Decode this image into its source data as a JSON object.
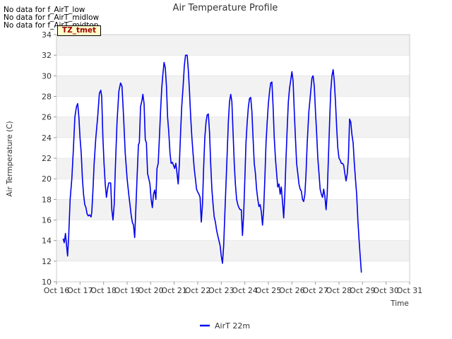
{
  "no_data_notes": [
    "No data for f_AirT_low",
    "No data for f_AirT_midlow",
    "No data for f_AirT_midtop"
  ],
  "tz_label": "TZ_tmet",
  "colors": {
    "series": "#0000ee",
    "band": "#f2f2f2",
    "grid": "#dddddd"
  },
  "chart_data": {
    "type": "line",
    "title": "Air Temperature Profile",
    "xlabel": "Time",
    "ylabel": "Air Termperature (C)",
    "xlim": [
      16,
      31
    ],
    "ylim": [
      10,
      34
    ],
    "y_ticks": [
      10,
      12,
      14,
      16,
      18,
      20,
      22,
      24,
      26,
      28,
      30,
      32,
      34
    ],
    "x_ticks": [
      {
        "v": 16,
        "label": "Oct 16"
      },
      {
        "v": 17,
        "label": "Oct 17"
      },
      {
        "v": 18,
        "label": "Oct 18"
      },
      {
        "v": 19,
        "label": "Oct 19"
      },
      {
        "v": 20,
        "label": "Oct 20"
      },
      {
        "v": 21,
        "label": "Oct 21"
      },
      {
        "v": 22,
        "label": "Oct 22"
      },
      {
        "v": 23,
        "label": "Oct 23"
      },
      {
        "v": 24,
        "label": "Oct 24"
      },
      {
        "v": 25,
        "label": "Oct 25"
      },
      {
        "v": 26,
        "label": "Oct 26"
      },
      {
        "v": 27,
        "label": "Oct 27"
      },
      {
        "v": 28,
        "label": "Oct 28"
      },
      {
        "v": 29,
        "label": "Oct 29"
      },
      {
        "v": 30,
        "label": "Oct 30"
      },
      {
        "v": 31,
        "label": "Oct 31"
      }
    ],
    "legend": "bottom-center",
    "series": [
      {
        "name": "AirT 22m",
        "points": [
          [
            16.28,
            14.2
          ],
          [
            16.33,
            13.8
          ],
          [
            16.38,
            14.7
          ],
          [
            16.43,
            13.5
          ],
          [
            16.47,
            12.5
          ],
          [
            16.52,
            14.5
          ],
          [
            16.58,
            18.0
          ],
          [
            16.65,
            20.0
          ],
          [
            16.72,
            23.0
          ],
          [
            16.78,
            26.0
          ],
          [
            16.85,
            27.0
          ],
          [
            16.9,
            27.3
          ],
          [
            16.95,
            26.0
          ],
          [
            17.0,
            24.0
          ],
          [
            17.05,
            22.5
          ],
          [
            17.1,
            20.0
          ],
          [
            17.15,
            18.5
          ],
          [
            17.2,
            17.5
          ],
          [
            17.25,
            17.2
          ],
          [
            17.3,
            16.6
          ],
          [
            17.35,
            16.4
          ],
          [
            17.4,
            16.5
          ],
          [
            17.47,
            16.3
          ],
          [
            17.5,
            16.8
          ],
          [
            17.55,
            19.0
          ],
          [
            17.6,
            21.5
          ],
          [
            17.67,
            24.0
          ],
          [
            17.75,
            26.0
          ],
          [
            17.82,
            28.3
          ],
          [
            17.88,
            28.6
          ],
          [
            17.92,
            28.0
          ],
          [
            17.97,
            24.0
          ],
          [
            18.02,
            21.5
          ],
          [
            18.07,
            19.5
          ],
          [
            18.12,
            18.2
          ],
          [
            18.17,
            19.0
          ],
          [
            18.22,
            19.6
          ],
          [
            18.3,
            19.6
          ],
          [
            18.35,
            17.0
          ],
          [
            18.4,
            16.0
          ],
          [
            18.45,
            17.5
          ],
          [
            18.5,
            21.0
          ],
          [
            18.57,
            25.5
          ],
          [
            18.65,
            28.5
          ],
          [
            18.72,
            29.3
          ],
          [
            18.78,
            29.0
          ],
          [
            18.85,
            26.0
          ],
          [
            18.92,
            22.5
          ],
          [
            19.0,
            20.0
          ],
          [
            19.07,
            18.5
          ],
          [
            19.12,
            17.5
          ],
          [
            19.17,
            16.5
          ],
          [
            19.22,
            15.8
          ],
          [
            19.27,
            15.5
          ],
          [
            19.32,
            14.3
          ],
          [
            19.37,
            17.0
          ],
          [
            19.42,
            20.0
          ],
          [
            19.48,
            23.3
          ],
          [
            19.52,
            23.5
          ],
          [
            19.57,
            27.0
          ],
          [
            19.63,
            27.6
          ],
          [
            19.67,
            28.2
          ],
          [
            19.72,
            27.3
          ],
          [
            19.77,
            23.8
          ],
          [
            19.82,
            23.5
          ],
          [
            19.87,
            20.5
          ],
          [
            19.92,
            20.0
          ],
          [
            19.97,
            19.5
          ],
          [
            20.02,
            18.0
          ],
          [
            20.07,
            17.2
          ],
          [
            20.12,
            18.5
          ],
          [
            20.17,
            18.9
          ],
          [
            20.22,
            18.0
          ],
          [
            20.27,
            21.0
          ],
          [
            20.32,
            21.5
          ],
          [
            20.37,
            24.0
          ],
          [
            20.42,
            26.5
          ],
          [
            20.47,
            28.8
          ],
          [
            20.52,
            30.2
          ],
          [
            20.57,
            31.3
          ],
          [
            20.62,
            30.8
          ],
          [
            20.67,
            29.0
          ],
          [
            20.72,
            26.0
          ],
          [
            20.77,
            24.5
          ],
          [
            20.82,
            22.5
          ],
          [
            20.87,
            21.5
          ],
          [
            20.92,
            21.6
          ],
          [
            20.97,
            21.3
          ],
          [
            21.02,
            21.0
          ],
          [
            21.07,
            21.5
          ],
          [
            21.12,
            20.5
          ],
          [
            21.17,
            19.5
          ],
          [
            21.22,
            21.5
          ],
          [
            21.27,
            24.5
          ],
          [
            21.32,
            27.0
          ],
          [
            21.38,
            29.0
          ],
          [
            21.43,
            31.0
          ],
          [
            21.48,
            32.0
          ],
          [
            21.55,
            32.0
          ],
          [
            21.6,
            30.5
          ],
          [
            21.65,
            28.5
          ],
          [
            21.7,
            26.0
          ],
          [
            21.75,
            24.0
          ],
          [
            21.8,
            22.5
          ],
          [
            21.85,
            21.0
          ],
          [
            21.9,
            20.0
          ],
          [
            21.95,
            19.0
          ],
          [
            22.0,
            18.7
          ],
          [
            22.05,
            18.5
          ],
          [
            22.1,
            18.2
          ],
          [
            22.15,
            15.8
          ],
          [
            22.2,
            17.5
          ],
          [
            22.25,
            21.0
          ],
          [
            22.3,
            24.0
          ],
          [
            22.35,
            25.5
          ],
          [
            22.4,
            26.2
          ],
          [
            22.45,
            26.3
          ],
          [
            22.5,
            24.5
          ],
          [
            22.55,
            21.5
          ],
          [
            22.6,
            19.0
          ],
          [
            22.65,
            17.5
          ],
          [
            22.7,
            16.3
          ],
          [
            22.75,
            15.8
          ],
          [
            22.8,
            15.0
          ],
          [
            22.85,
            14.5
          ],
          [
            22.9,
            14.0
          ],
          [
            22.95,
            13.5
          ],
          [
            23.0,
            12.5
          ],
          [
            23.05,
            11.8
          ],
          [
            23.1,
            13.5
          ],
          [
            23.15,
            16.5
          ],
          [
            23.2,
            19.5
          ],
          [
            23.25,
            22.5
          ],
          [
            23.3,
            25.5
          ],
          [
            23.35,
            27.5
          ],
          [
            23.4,
            28.2
          ],
          [
            23.45,
            27.5
          ],
          [
            23.5,
            24.5
          ],
          [
            23.55,
            21.5
          ],
          [
            23.6,
            19.5
          ],
          [
            23.65,
            18.0
          ],
          [
            23.7,
            17.5
          ],
          [
            23.75,
            17.2
          ],
          [
            23.8,
            17.0
          ],
          [
            23.85,
            17.0
          ],
          [
            23.9,
            14.5
          ],
          [
            23.95,
            16.5
          ],
          [
            24.0,
            20.0
          ],
          [
            24.05,
            23.5
          ],
          [
            24.1,
            25.5
          ],
          [
            24.15,
            27.0
          ],
          [
            24.2,
            27.8
          ],
          [
            24.25,
            27.9
          ],
          [
            24.3,
            26.5
          ],
          [
            24.35,
            24.0
          ],
          [
            24.4,
            21.5
          ],
          [
            24.45,
            20.5
          ],
          [
            24.5,
            19.0
          ],
          [
            24.55,
            18.0
          ],
          [
            24.6,
            17.3
          ],
          [
            24.65,
            17.5
          ],
          [
            24.7,
            16.8
          ],
          [
            24.75,
            15.5
          ],
          [
            24.8,
            17.0
          ],
          [
            24.85,
            20.0
          ],
          [
            24.9,
            23.5
          ],
          [
            24.95,
            25.5
          ],
          [
            25.0,
            27.3
          ],
          [
            25.05,
            28.5
          ],
          [
            25.1,
            29.3
          ],
          [
            25.15,
            29.4
          ],
          [
            25.2,
            27.0
          ],
          [
            25.25,
            24.0
          ],
          [
            25.3,
            22.0
          ],
          [
            25.35,
            20.5
          ],
          [
            25.4,
            19.2
          ],
          [
            25.45,
            19.5
          ],
          [
            25.5,
            18.5
          ],
          [
            25.55,
            19.2
          ],
          [
            25.6,
            17.8
          ],
          [
            25.65,
            16.2
          ],
          [
            25.7,
            18.5
          ],
          [
            25.75,
            22.0
          ],
          [
            25.8,
            25.0
          ],
          [
            25.85,
            27.5
          ],
          [
            25.9,
            28.8
          ],
          [
            25.95,
            29.6
          ],
          [
            26.0,
            30.4
          ],
          [
            26.05,
            29.5
          ],
          [
            26.1,
            26.5
          ],
          [
            26.15,
            24.0
          ],
          [
            26.2,
            21.5
          ],
          [
            26.25,
            20.5
          ],
          [
            26.3,
            19.5
          ],
          [
            26.35,
            19.0
          ],
          [
            26.4,
            18.8
          ],
          [
            26.45,
            18.0
          ],
          [
            26.5,
            17.8
          ],
          [
            26.55,
            18.5
          ],
          [
            26.6,
            20.5
          ],
          [
            26.65,
            23.5
          ],
          [
            26.72,
            26.5
          ],
          [
            26.8,
            28.5
          ],
          [
            26.85,
            29.8
          ],
          [
            26.9,
            30.0
          ],
          [
            26.95,
            29.0
          ],
          [
            27.0,
            26.5
          ],
          [
            27.05,
            24.5
          ],
          [
            27.1,
            22.0
          ],
          [
            27.15,
            20.5
          ],
          [
            27.2,
            19.0
          ],
          [
            27.25,
            18.5
          ],
          [
            27.3,
            18.2
          ],
          [
            27.35,
            19.0
          ],
          [
            27.4,
            18.3
          ],
          [
            27.45,
            17.0
          ],
          [
            27.5,
            18.5
          ],
          [
            27.55,
            22.0
          ],
          [
            27.6,
            25.5
          ],
          [
            27.65,
            28.5
          ],
          [
            27.7,
            30.0
          ],
          [
            27.75,
            30.6
          ],
          [
            27.8,
            29.5
          ],
          [
            27.85,
            27.5
          ],
          [
            27.9,
            25.0
          ],
          [
            27.95,
            23.0
          ],
          [
            28.0,
            22.0
          ],
          [
            28.05,
            21.8
          ],
          [
            28.1,
            21.5
          ],
          [
            28.15,
            21.5
          ],
          [
            28.2,
            21.3
          ],
          [
            28.25,
            20.5
          ],
          [
            28.3,
            19.8
          ],
          [
            28.35,
            20.5
          ],
          [
            28.4,
            22.0
          ],
          [
            28.45,
            25.8
          ],
          [
            28.5,
            25.5
          ],
          [
            28.55,
            24.3
          ],
          [
            28.6,
            23.5
          ],
          [
            28.65,
            21.5
          ],
          [
            28.7,
            20.0
          ],
          [
            28.75,
            18.5
          ],
          [
            28.8,
            16.0
          ],
          [
            28.85,
            14.2
          ],
          [
            28.9,
            12.5
          ],
          [
            28.95,
            10.9
          ]
        ]
      }
    ]
  }
}
